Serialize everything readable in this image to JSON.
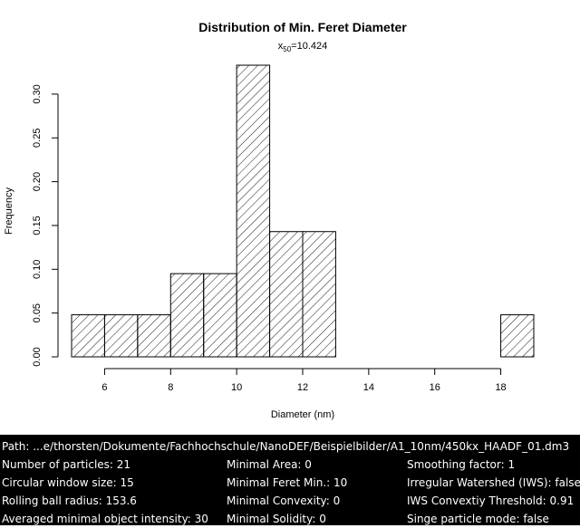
{
  "chart_data": {
    "type": "bar",
    "title": "Distribution of Min. Feret Diameter",
    "subtitle": {
      "base": "x",
      "sub": "50",
      "rest": "=10.424"
    },
    "xlabel": "Diameter (nm)",
    "ylabel": "Frequency",
    "bins": [
      {
        "x0": 5,
        "x1": 6,
        "value": 0.048
      },
      {
        "x0": 6,
        "x1": 7,
        "value": 0.048
      },
      {
        "x0": 7,
        "x1": 8,
        "value": 0.048
      },
      {
        "x0": 8,
        "x1": 9,
        "value": 0.095
      },
      {
        "x0": 9,
        "x1": 10,
        "value": 0.095
      },
      {
        "x0": 10,
        "x1": 11,
        "value": 0.333
      },
      {
        "x0": 11,
        "x1": 12,
        "value": 0.143
      },
      {
        "x0": 12,
        "x1": 13,
        "value": 0.143
      },
      {
        "x0": 13,
        "x1": 14,
        "value": 0
      },
      {
        "x0": 14,
        "x1": 15,
        "value": 0
      },
      {
        "x0": 15,
        "x1": 16,
        "value": 0
      },
      {
        "x0": 16,
        "x1": 17,
        "value": 0
      },
      {
        "x0": 17,
        "x1": 18,
        "value": 0
      },
      {
        "x0": 18,
        "x1": 19,
        "value": 0.048
      }
    ],
    "xlim": [
      5,
      19
    ],
    "ylim": [
      0,
      0.333
    ],
    "xticks": [
      6,
      8,
      10,
      12,
      14,
      16,
      18
    ],
    "xtick_labels": [
      "6",
      "8",
      "10",
      "12",
      "14",
      "16",
      "18"
    ],
    "yticks": [
      0,
      0.05,
      0.1,
      0.15,
      0.2,
      0.25,
      0.3
    ],
    "ytick_labels": [
      "0.00",
      "0.05",
      "0.10",
      "0.15",
      "0.20",
      "0.25",
      "0.30"
    ],
    "grid": false,
    "fill": "diagonal-hatch",
    "colors": {
      "bar_stroke": "#000000",
      "background": "#ffffff"
    }
  },
  "info": {
    "path": "Path: ...e/thorsten/Dokumente/Fachhochschule/NanoDEF/Beispielbilder/A1_10nm/450kx_HAADF_01.dm3",
    "col1": [
      "Number of particles: 21",
      "Circular window size: 15",
      "Rolling ball radius: 153.6",
      "Averaged minimal object intensity: 30"
    ],
    "col2": [
      "Minimal Area: 0",
      "Minimal Feret Min.: 10",
      "Minimal Convexity: 0",
      "Minimal Solidity: 0"
    ],
    "col3": [
      "Smoothing factor: 1",
      "Irregular Watershed (IWS): false",
      "IWS Convextiy Threshold: 0.91",
      "Singe particle mode: false"
    ],
    "colors": {
      "background": "#000000",
      "text": "#ffffff"
    }
  }
}
